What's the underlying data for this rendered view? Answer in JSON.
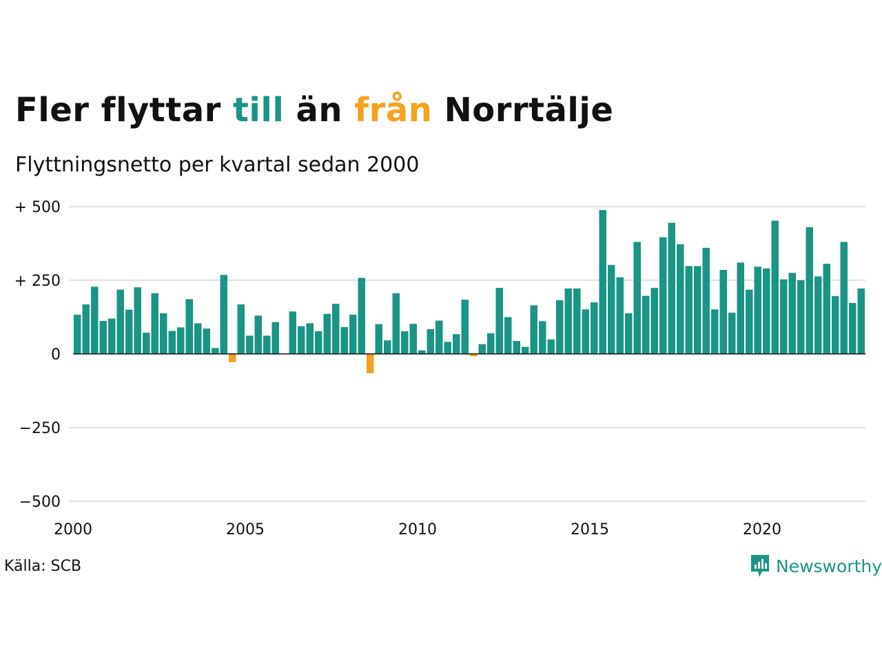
{
  "title": {
    "part1": "Fler flyttar ",
    "to_word": "till",
    "part2": " än ",
    "from_word": "från",
    "part3": " Norrtälje"
  },
  "subtitle": "Flyttningsnetto per kvartal sedan 2000",
  "source": "Källa: SCB",
  "brand": {
    "name": "Newsworthy",
    "icon": "newsworthy-logo-icon"
  },
  "colors": {
    "positive": "#1a9486",
    "negative": "#f5a11c",
    "grid": "#e3e3e3",
    "axis": "#111111"
  },
  "chart_data": {
    "type": "bar",
    "x_start_year": 2000,
    "periods_per_year": 4,
    "ylim": [
      -500,
      500
    ],
    "yticks": [
      500,
      250,
      0,
      -250,
      -500
    ],
    "ytick_labels": [
      "+ 500",
      "+ 250",
      "0",
      "−250",
      "−500"
    ],
    "xticks": [
      2000,
      2005,
      2010,
      2015,
      2020
    ],
    "xtick_labels": [
      "2000",
      "2005",
      "2010",
      "2015",
      "2020"
    ],
    "grid": true,
    "values": [
      133,
      168,
      228,
      112,
      120,
      218,
      150,
      226,
      72,
      206,
      138,
      78,
      90,
      186,
      104,
      86,
      20,
      268,
      -28,
      168,
      62,
      130,
      62,
      108,
      0,
      144,
      94,
      104,
      77,
      136,
      170,
      91,
      133,
      258,
      -65,
      101,
      46,
      206,
      77,
      102,
      12,
      84,
      113,
      41,
      67,
      184,
      -8,
      33,
      70,
      224,
      125,
      44,
      24,
      165,
      111,
      49,
      182,
      222,
      222,
      151,
      175,
      488,
      302,
      260,
      138,
      380,
      197,
      224,
      396,
      445,
      372,
      298,
      298,
      360,
      151,
      285,
      140,
      310,
      218,
      296,
      290,
      452,
      253,
      275,
      250,
      430,
      263,
      306,
      196,
      380,
      173,
      222
    ]
  }
}
